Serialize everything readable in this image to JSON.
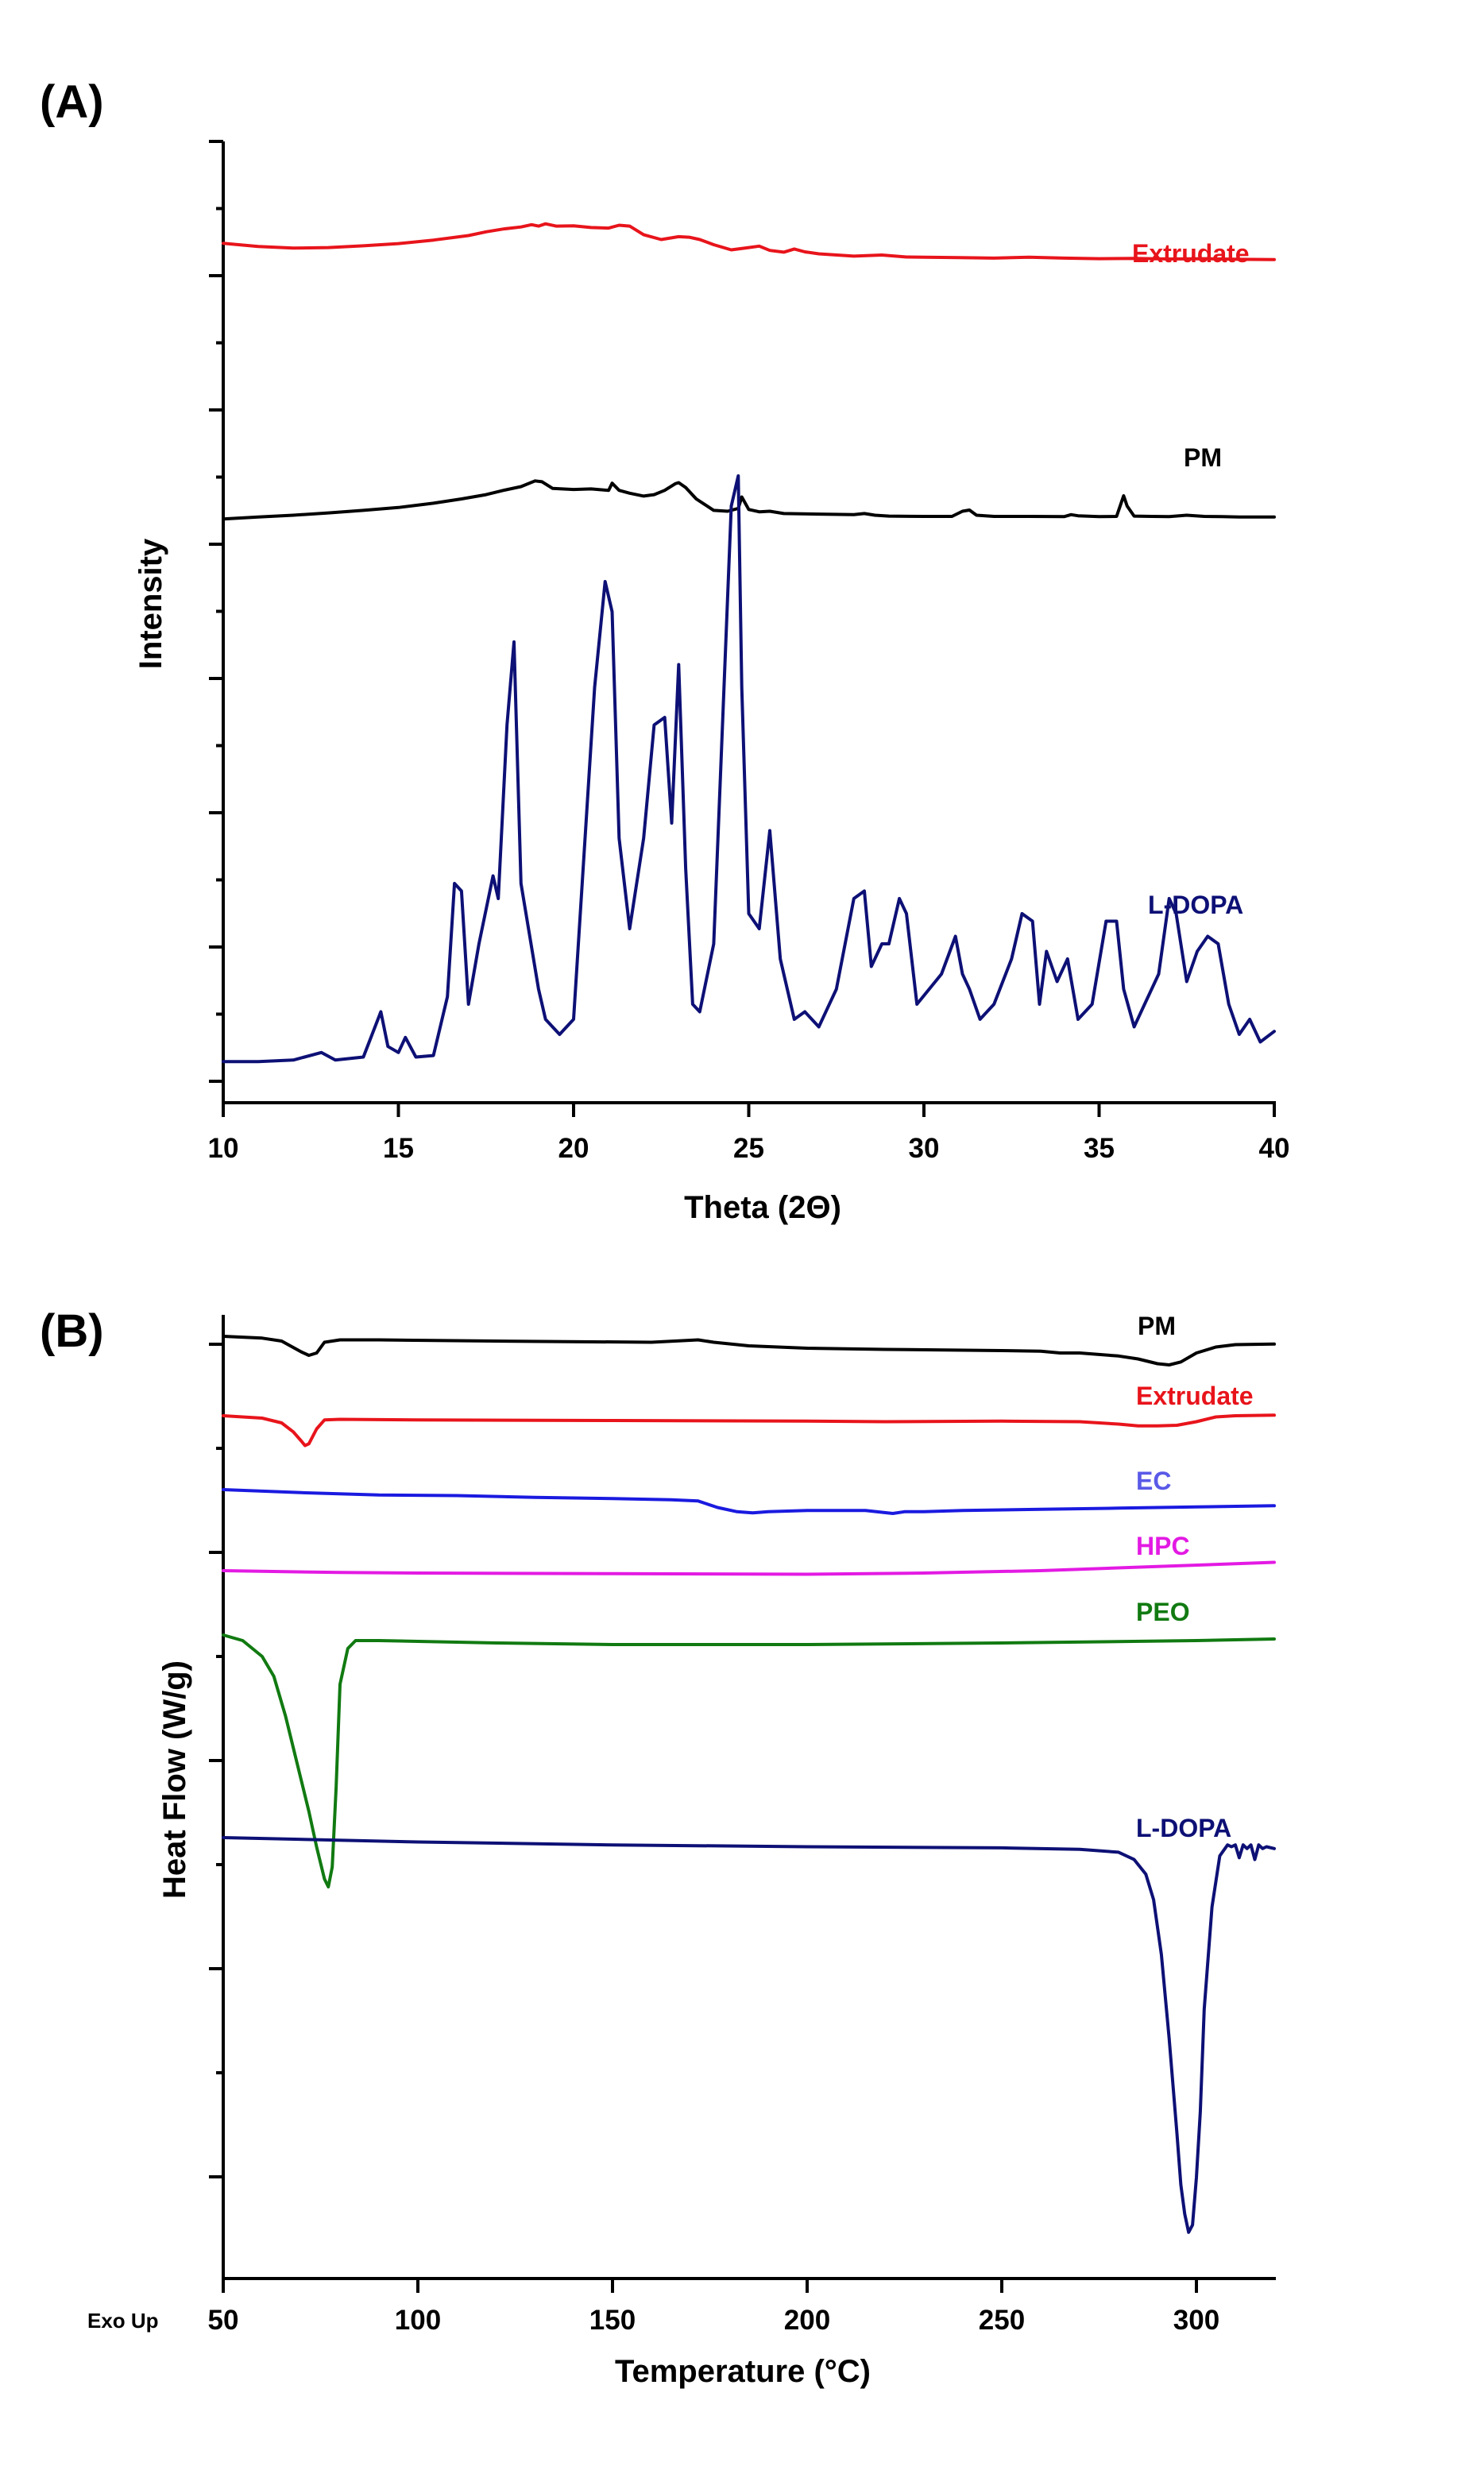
{
  "chart_data": [
    {
      "type": "line",
      "panel_label": "(A)",
      "xlabel": "Theta (2Θ)",
      "ylabel": "Intensity",
      "xlim": [
        10,
        40
      ],
      "xticks": [
        10,
        15,
        20,
        25,
        30,
        35,
        40
      ],
      "y_tick_labels_shown": false,
      "grid": false,
      "series": [
        {
          "name": "Extrudate",
          "color": "#e8141b",
          "x": [
            10,
            11,
            12,
            13,
            14,
            15,
            16,
            17,
            17.5,
            18,
            18.5,
            18.8,
            19,
            19.2,
            19.5,
            20,
            20.5,
            21,
            21.3,
            21.6,
            22,
            22.5,
            23,
            23.3,
            23.6,
            24,
            24.5,
            25,
            25.3,
            25.6,
            26,
            26.3,
            26.6,
            27,
            28,
            28.8,
            29.5,
            30,
            31,
            32,
            33,
            34,
            35,
            36,
            37,
            38,
            39,
            40
          ],
          "y": [
            1.55,
            1.44,
            1.38,
            1.4,
            1.46,
            1.54,
            1.66,
            1.82,
            1.95,
            2.05,
            2.12,
            2.2,
            2.15,
            2.23,
            2.15,
            2.16,
            2.1,
            2.08,
            2.18,
            2.15,
            1.85,
            1.68,
            1.78,
            1.76,
            1.68,
            1.5,
            1.32,
            1.4,
            1.45,
            1.3,
            1.24,
            1.35,
            1.25,
            1.18,
            1.1,
            1.14,
            1.07,
            1.06,
            1.05,
            1.03,
            1.06,
            1.03,
            1.01,
            1.02,
            1.0,
            1.01,
            0.99,
            0.98
          ]
        },
        {
          "name": "PM",
          "color": "#000000",
          "x": [
            10,
            11,
            12,
            13,
            14,
            15,
            16,
            16.8,
            17.5,
            18,
            18.5,
            18.9,
            19.1,
            19.4,
            20,
            20.5,
            21,
            21.1,
            21.3,
            21.6,
            22,
            22.3,
            22.6,
            22.9,
            23,
            23.2,
            23.5,
            24,
            24.4,
            24.7,
            24.8,
            25,
            25.3,
            25.6,
            26,
            27,
            28,
            28.3,
            28.6,
            29,
            30,
            30.8,
            31.1,
            31.3,
            31.5,
            32,
            33,
            34,
            34.2,
            34.4,
            35,
            35.5,
            35.7,
            35.8,
            36,
            36.5,
            37,
            37.5,
            38,
            38.5,
            39,
            40
          ],
          "y": [
            0.05,
            0.12,
            0.18,
            0.26,
            0.35,
            0.45,
            0.6,
            0.75,
            0.9,
            1.05,
            1.18,
            1.38,
            1.35,
            1.12,
            1.08,
            1.1,
            1.05,
            1.3,
            1.05,
            0.95,
            0.85,
            0.9,
            1.05,
            1.28,
            1.32,
            1.15,
            0.75,
            0.35,
            0.32,
            0.42,
            0.82,
            0.38,
            0.3,
            0.32,
            0.24,
            0.22,
            0.2,
            0.24,
            0.18,
            0.15,
            0.14,
            0.14,
            0.32,
            0.36,
            0.18,
            0.14,
            0.14,
            0.13,
            0.2,
            0.16,
            0.13,
            0.14,
            0.86,
            0.5,
            0.15,
            0.14,
            0.13,
            0.18,
            0.14,
            0.13,
            0.12,
            0.12
          ]
        },
        {
          "name": "L-DOPA",
          "color": "#0d1075",
          "x": [
            10,
            11,
            12,
            12.8,
            13.2,
            14,
            14.5,
            14.7,
            15,
            15.2,
            15.5,
            16,
            16.4,
            16.6,
            16.8,
            17,
            17.3,
            17.7,
            17.85,
            18.1,
            18.3,
            18.5,
            19,
            19.2,
            19.4,
            19.6,
            20,
            20.6,
            20.9,
            21.1,
            21.3,
            21.6,
            22,
            22.3,
            22.6,
            22.8,
            23,
            23.2,
            23.4,
            23.6,
            24,
            24.5,
            24.7,
            24.8,
            25,
            25.3,
            25.6,
            25.9,
            26.3,
            26.6,
            26.8,
            27,
            27.5,
            28,
            28.3,
            28.5,
            28.8,
            29,
            29.3,
            29.5,
            29.8,
            30.5,
            30.9,
            31.1,
            31.3,
            31.6,
            32,
            32.5,
            32.8,
            33.1,
            33.3,
            33.5,
            33.8,
            34.1,
            34.4,
            34.8,
            35.2,
            35.5,
            35.7,
            36,
            36.3,
            36.7,
            37,
            37.2,
            37.5,
            37.8,
            38.1,
            38.4,
            38.7,
            39,
            39.3,
            39.6,
            40
          ],
          "y": [
            0.02,
            0.02,
            0.03,
            0.08,
            0.03,
            0.05,
            0.35,
            0.12,
            0.08,
            0.18,
            0.05,
            0.06,
            0.45,
            1.2,
            1.15,
            0.4,
            0.8,
            1.25,
            1.1,
            2.25,
            2.8,
            1.2,
            0.5,
            0.3,
            0.25,
            0.2,
            0.3,
            2.5,
            3.2,
            3.0,
            1.5,
            0.9,
            1.5,
            2.25,
            2.3,
            1.6,
            2.65,
            1.3,
            0.4,
            0.35,
            0.8,
            3.7,
            3.9,
            2.5,
            1.0,
            0.9,
            1.55,
            0.7,
            0.3,
            0.35,
            0.3,
            0.25,
            0.5,
            1.1,
            1.15,
            0.65,
            0.8,
            0.8,
            1.1,
            1.0,
            0.4,
            0.6,
            0.85,
            0.6,
            0.5,
            0.3,
            0.4,
            0.7,
            1.0,
            0.95,
            0.4,
            0.75,
            0.55,
            0.7,
            0.3,
            0.4,
            0.95,
            0.95,
            0.5,
            0.25,
            0.4,
            0.6,
            1.1,
            1.0,
            0.55,
            0.75,
            0.85,
            0.8,
            0.4,
            0.2,
            0.3,
            0.15,
            0.22
          ]
        }
      ]
    },
    {
      "type": "line",
      "panel_label": "(B)",
      "xlabel": "Temperature (°C)",
      "ylabel": "Heat Flow (W/g)",
      "corner_note": "Exo Up",
      "xlim": [
        50,
        320
      ],
      "xticks": [
        50,
        100,
        150,
        200,
        250,
        300
      ],
      "y_tick_labels_shown": false,
      "grid": false,
      "series": [
        {
          "name": "PM",
          "color": "#000000",
          "x": [
            50,
            60,
            65,
            70,
            72,
            74,
            76,
            80,
            90,
            120,
            160,
            172,
            176,
            185,
            200,
            220,
            250,
            260,
            265,
            270,
            280,
            285,
            290,
            293,
            296,
            300,
            305,
            310,
            320
          ],
          "y": [
            7.58,
            7.55,
            7.5,
            7.32,
            7.26,
            7.3,
            7.48,
            7.52,
            7.52,
            7.5,
            7.48,
            7.52,
            7.48,
            7.42,
            7.38,
            7.36,
            7.34,
            7.33,
            7.3,
            7.3,
            7.25,
            7.2,
            7.12,
            7.1,
            7.15,
            7.3,
            7.4,
            7.44,
            7.45
          ]
        },
        {
          "name": "Extrudate",
          "color": "#e8141b",
          "x": [
            50,
            60,
            65,
            68,
            70,
            71,
            72,
            74,
            76,
            80,
            100,
            150,
            200,
            220,
            250,
            270,
            280,
            285,
            290,
            295,
            300,
            305,
            310,
            320
          ],
          "y": [
            6.92,
            6.88,
            6.8,
            6.65,
            6.5,
            6.42,
            6.45,
            6.7,
            6.85,
            6.86,
            6.85,
            6.84,
            6.83,
            6.82,
            6.83,
            6.82,
            6.78,
            6.75,
            6.75,
            6.76,
            6.82,
            6.9,
            6.92,
            6.93
          ]
        },
        {
          "name": "EC",
          "color": "#1a1ae0",
          "x": [
            50,
            70,
            90,
            110,
            130,
            150,
            165,
            172,
            177,
            182,
            186,
            190,
            200,
            215,
            222,
            225,
            230,
            240,
            260,
            280,
            300,
            320
          ],
          "y": [
            5.75,
            5.7,
            5.66,
            5.65,
            5.62,
            5.6,
            5.58,
            5.56,
            5.45,
            5.38,
            5.36,
            5.38,
            5.4,
            5.4,
            5.35,
            5.38,
            5.38,
            5.4,
            5.42,
            5.44,
            5.46,
            5.48
          ]
        },
        {
          "name": "HPC",
          "color": "#e31ae3",
          "x": [
            50,
            80,
            100,
            150,
            200,
            230,
            260,
            290,
            320
          ],
          "y": [
            4.48,
            4.45,
            4.44,
            4.43,
            4.42,
            4.44,
            4.48,
            4.55,
            4.62
          ]
        },
        {
          "name": "PEO",
          "color": "#117a11",
          "x": [
            50,
            55,
            60,
            63,
            66,
            69,
            72,
            74,
            76,
            77,
            78,
            79,
            80,
            82,
            84,
            90,
            120,
            150,
            200,
            250,
            300,
            320
          ],
          "y": [
            3.52,
            3.45,
            3.25,
            3.0,
            2.5,
            1.9,
            1.3,
            0.85,
            0.45,
            0.35,
            0.6,
            1.6,
            2.9,
            3.35,
            3.45,
            3.45,
            3.42,
            3.4,
            3.4,
            3.42,
            3.45,
            3.47
          ]
        },
        {
          "name": "L-DOPA",
          "color": "#0d1075",
          "x": [
            50,
            100,
            150,
            200,
            250,
            270,
            280,
            284,
            287,
            289,
            291,
            293,
            295,
            296,
            297,
            298,
            299,
            300,
            301,
            302,
            304,
            306,
            308,
            309,
            310,
            311,
            312,
            313,
            314,
            315,
            316,
            317,
            318,
            320
          ],
          "y": [
            -0.3,
            -0.42,
            -0.5,
            -0.55,
            -0.58,
            -0.62,
            -0.7,
            -0.9,
            -1.3,
            -2.0,
            -3.5,
            -5.8,
            -8.4,
            -9.8,
            -10.6,
            -11.1,
            -10.9,
            -9.6,
            -7.8,
            -5.0,
            -2.2,
            -0.8,
            -0.5,
            -0.55,
            -0.5,
            -0.85,
            -0.5,
            -0.6,
            -0.5,
            -0.9,
            -0.5,
            -0.6,
            -0.55,
            -0.6
          ]
        }
      ]
    }
  ]
}
